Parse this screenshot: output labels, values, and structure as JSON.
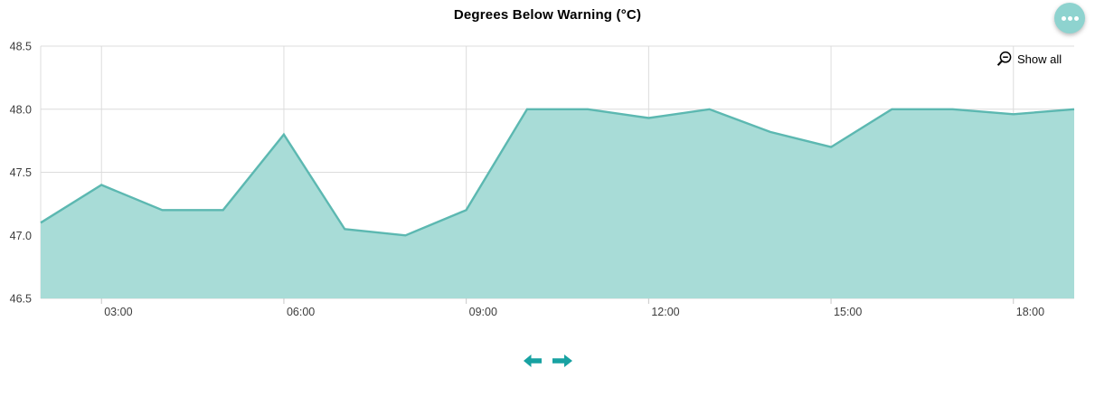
{
  "header": {
    "title": "Degrees Below Warning (°C)"
  },
  "toolbar": {
    "show_all_label": "Show all",
    "menu_icon": "ellipsis-icon",
    "zoom_out_icon": "magnifier-minus-icon"
  },
  "pan_controls": {
    "left_icon": "arrow-left-icon",
    "right_icon": "arrow-right-icon"
  },
  "colors": {
    "series_line": "#5cb8b1",
    "series_fill": "#a8dcd7",
    "accent_teal": "#18a2a2",
    "menu_button_bg": "#8ed3cf",
    "gridline": "#dcdcdc",
    "axis_label": "#3d3d3d",
    "title_text": "#000000"
  },
  "chart_data": {
    "type": "area",
    "title": "Degrees Below Warning (°C)",
    "xlabel": "",
    "ylabel": "",
    "legend": "none",
    "grid": true,
    "x": [
      "02:00",
      "03:00",
      "04:00",
      "05:00",
      "06:00",
      "07:00",
      "08:00",
      "09:00",
      "10:00",
      "11:00",
      "12:00",
      "13:00",
      "14:00",
      "15:00",
      "16:00",
      "17:00",
      "18:00",
      "19:00"
    ],
    "values": [
      47.1,
      47.4,
      47.2,
      47.2,
      47.8,
      47.05,
      47.0,
      47.2,
      48.0,
      48.0,
      47.93,
      48.0,
      47.82,
      47.7,
      48.0,
      48.0,
      47.96,
      48.0
    ],
    "ylim": [
      46.5,
      48.5
    ],
    "yticks": [
      "46.5",
      "47.0",
      "47.5",
      "48.0",
      "48.5"
    ],
    "xticks": [
      "03:00",
      "06:00",
      "09:00",
      "12:00",
      "15:00",
      "18:00"
    ]
  }
}
